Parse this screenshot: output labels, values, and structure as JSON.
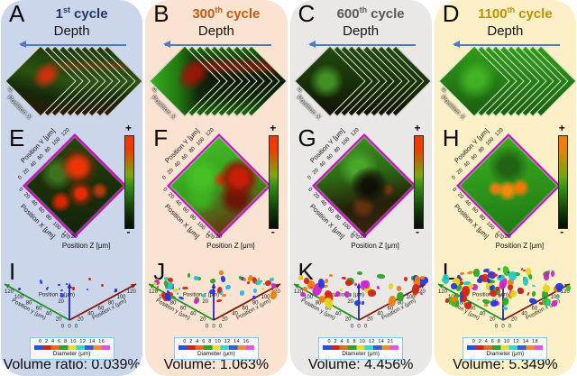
{
  "shared": {
    "depth_label": "Depth",
    "stack_pos_y": "Position Y",
    "stack_pos_x": "Position X",
    "mid_axis_y": "Position Y [μm]",
    "mid_axis_x": "Position X [μm]",
    "mid_axis_z": "Position Z [μm]",
    "mid_ticks": "0 20 40 60 80 100 120",
    "mid_z_ticks": "0 20",
    "colorbar_plus": "+",
    "colorbar_minus": "-",
    "bot_axis_y": "Position y (μm)",
    "bot_axis_x": "Position x (μm)",
    "bot_axis_z": "Position z (μm)",
    "bot_y_ticks": [
      "120",
      "100",
      "80",
      "60",
      "40",
      "20"
    ],
    "bot_x_ticks": [
      "20",
      "40",
      "60",
      "80",
      "100",
      "120"
    ],
    "bot_z_tick": "20",
    "bot_origin_ticks": "0 0 0",
    "diameter_label": "Diameter (μm)",
    "axis_colors": {
      "y": "#18941c",
      "x": "#8a1505",
      "z": "#2222cc"
    }
  },
  "columns": [
    {
      "letters": {
        "top": "A",
        "mid": "E",
        "bot": "I"
      },
      "title": {
        "number": "1",
        "suffix": "st",
        "word": "cycle",
        "color": "#1f3864"
      },
      "card_color": "#ccd6ea",
      "diameter_ticks": "0 2 4 6 8 10 12 14 16",
      "volume_label": "Volume ratio: 0.039%",
      "scatter": {
        "seed": 11,
        "count": 15,
        "min": 1.5,
        "max": 4,
        "band": [
          16,
          42
        ],
        "palette": [
          "#2038e0",
          "#2945ee",
          "#1b30cc",
          "#2038e0",
          "#d42410"
        ]
      }
    },
    {
      "letters": {
        "top": "B",
        "mid": "F",
        "bot": "J"
      },
      "title": {
        "number": "300",
        "suffix": "th",
        "word": "cycle",
        "color": "#c55a11"
      },
      "card_color": "#fbe3d2",
      "diameter_ticks": "0 2 4 6 8 10 12 14 16",
      "volume_label": "Volume: 1.063%",
      "scatter": {
        "seed": 23,
        "count": 58,
        "min": 2,
        "max": 7,
        "band": [
          8,
          46
        ],
        "palette": [
          "#d42410",
          "#2038e0",
          "#28b6e8",
          "#22c8c0",
          "#e8d416",
          "#2aa428",
          "#ef7d10",
          "#d42410",
          "#2038e0",
          "#cc22cc"
        ]
      }
    },
    {
      "letters": {
        "top": "C",
        "mid": "G",
        "bot": "K"
      },
      "title": {
        "number": "600",
        "suffix": "th",
        "word": "cycle",
        "color": "#595959"
      },
      "card_color": "#e9e8e7",
      "diameter_ticks": "0 2 4 6 8 10 12 14 21",
      "volume_label": "Volume: 4.456%",
      "scatter": {
        "seed": 37,
        "count": 55,
        "min": 2.5,
        "max": 10,
        "band": [
          6,
          46
        ],
        "palette": [
          "#d42410",
          "#2038e0",
          "#ef7d10",
          "#cc22cc",
          "#cc22cc",
          "#ef7d10",
          "#2aa428",
          "#e8d416",
          "#2038e0",
          "#d42410"
        ]
      }
    },
    {
      "letters": {
        "top": "D",
        "mid": "H",
        "bot": "L"
      },
      "title": {
        "number": "1100",
        "suffix": "th",
        "word": "cycle",
        "color": "#bf8f00"
      },
      "card_color": "#fdf0c6",
      "diameter_ticks": "0 2 4 6 8 10 12 14 18",
      "volume_label": "Volume: 5.349%",
      "scatter": {
        "seed": 51,
        "count": 100,
        "min": 2,
        "max": 9,
        "band": [
          4,
          52
        ],
        "palette": [
          "#d42410",
          "#2038e0",
          "#ef7d10",
          "#cc22cc",
          "#2aa428",
          "#e8d416",
          "#22c8c0",
          "#2aa428",
          "#38c020",
          "#d42410",
          "#2038e0"
        ]
      }
    }
  ],
  "chart_data": {
    "type": "scatter",
    "title": "",
    "categories": [
      "1st cycle",
      "300th cycle",
      "600th cycle",
      "1100th cycle"
    ],
    "series": [
      {
        "name": "Volume ratio (%)",
        "values": [
          0.039,
          1.063,
          4.456,
          5.349
        ]
      }
    ],
    "axis_ranges": {
      "position_x_um": [
        0,
        120
      ],
      "position_y_um": [
        0,
        120
      ],
      "position_z_um": [
        0,
        20
      ]
    },
    "diameter_scale_max_um": [
      16,
      16,
      21,
      18
    ],
    "legend_position": "bottom"
  }
}
